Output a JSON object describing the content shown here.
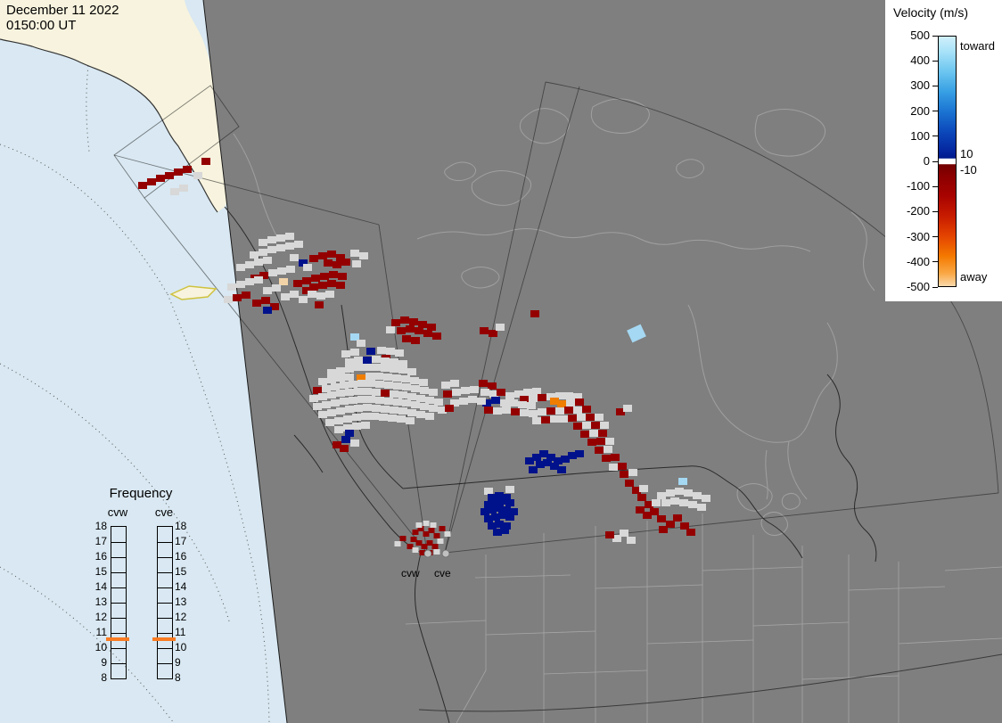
{
  "header": {
    "date": "December 11 2022",
    "time": "0150:00 UT"
  },
  "colorbar": {
    "title": "Velocity (m/s)",
    "toward": "toward",
    "away": "away",
    "ticks": [
      "500",
      "400",
      "300",
      "200",
      "100",
      "0",
      "-100",
      "-200",
      "-300",
      "-400",
      "-500"
    ],
    "inner_ticks": [
      "10",
      "-10"
    ],
    "stops": [
      [
        0,
        "#d0f0fb"
      ],
      [
        0.06,
        "#a8e2f8"
      ],
      [
        0.14,
        "#6cc6f0"
      ],
      [
        0.22,
        "#38a0e4"
      ],
      [
        0.3,
        "#1b74d2"
      ],
      [
        0.38,
        "#0c49bb"
      ],
      [
        0.46,
        "#04259e"
      ],
      [
        0.487,
        "#001a8c"
      ],
      [
        0.49,
        "#ffffff"
      ],
      [
        0.51,
        "#ffffff"
      ],
      [
        0.513,
        "#730000"
      ],
      [
        0.56,
        "#8c0000"
      ],
      [
        0.64,
        "#a80300"
      ],
      [
        0.72,
        "#c81c00"
      ],
      [
        0.8,
        "#e44400"
      ],
      [
        0.88,
        "#f47a00"
      ],
      [
        0.95,
        "#f9a947"
      ],
      [
        1,
        "#fbd9ad"
      ]
    ]
  },
  "frequency": {
    "title": "Frequency",
    "columns": [
      "cvw",
      "cve"
    ],
    "ticks": [
      "18",
      "17",
      "16",
      "15",
      "14",
      "13",
      "12",
      "11",
      "10",
      "9",
      "8"
    ],
    "marker_color": "#f97b22",
    "marker_value": 10.5
  },
  "map": {
    "sites": [
      "cvw",
      "cve"
    ]
  },
  "colors": {
    "ocean": "#d9e8f2",
    "land": "#f7f3de",
    "map_bg": "#7f7f7f",
    "coast": "#a0a0a0",
    "border": "#2b2b2b",
    "G": "#d8d8d8",
    "R": "#940000",
    "N": "#00128b",
    "LB": "#a5d8f3",
    "O": "#ef7d00",
    "C": "#f2d3a8"
  },
  "cells": [
    [
      "R",
      160,
      208
    ],
    [
      "R",
      170,
      204
    ],
    [
      "R",
      180,
      200
    ],
    [
      "R",
      190,
      197
    ],
    [
      "R",
      200,
      193
    ],
    [
      "R",
      210,
      190
    ],
    [
      "R",
      231,
      181
    ],
    [
      "G",
      196,
      215
    ],
    [
      "G",
      206,
      211
    ],
    [
      "G",
      222,
      197
    ],
    [
      "G",
      295,
      272
    ],
    [
      "G",
      305,
      269
    ],
    [
      "G",
      315,
      267
    ],
    [
      "G",
      325,
      265
    ],
    [
      "G",
      285,
      286
    ],
    [
      "G",
      295,
      283
    ],
    [
      "G",
      305,
      280
    ],
    [
      "G",
      315,
      278
    ],
    [
      "G",
      325,
      276
    ],
    [
      "G",
      335,
      274
    ],
    [
      "R",
      352,
      290
    ],
    [
      "R",
      362,
      287
    ],
    [
      "R",
      372,
      285
    ],
    [
      "R",
      382,
      289
    ],
    [
      "R",
      368,
      295
    ],
    [
      "R",
      378,
      297
    ],
    [
      "R",
      388,
      294
    ],
    [
      "N",
      340,
      295
    ],
    [
      "G",
      270,
      300
    ],
    [
      "G",
      280,
      297
    ],
    [
      "G",
      290,
      294
    ],
    [
      "G",
      300,
      292
    ],
    [
      "G",
      330,
      289
    ],
    [
      "G",
      345,
      300
    ],
    [
      "R",
      286,
      312
    ],
    [
      "R",
      296,
      309
    ],
    [
      "G",
      306,
      306
    ],
    [
      "G",
      316,
      304
    ],
    [
      "G",
      326,
      302
    ],
    [
      "C",
      318,
      316
    ],
    [
      "R",
      334,
      318
    ],
    [
      "R",
      344,
      315
    ],
    [
      "R",
      354,
      312
    ],
    [
      "R",
      364,
      310
    ],
    [
      "R",
      374,
      308
    ],
    [
      "R",
      384,
      310
    ],
    [
      "R",
      352,
      322
    ],
    [
      "R",
      362,
      320
    ],
    [
      "R",
      372,
      318
    ],
    [
      "R",
      382,
      320
    ],
    [
      "R",
      344,
      326
    ],
    [
      "G",
      260,
      322
    ],
    [
      "G",
      270,
      319
    ],
    [
      "G",
      280,
      316
    ],
    [
      "G",
      290,
      314
    ],
    [
      "G",
      300,
      326
    ],
    [
      "G",
      310,
      323
    ],
    [
      "R",
      266,
      334
    ],
    [
      "R",
      276,
      331
    ],
    [
      "R",
      288,
      340
    ],
    [
      "R",
      298,
      337
    ],
    [
      "G",
      256,
      336
    ],
    [
      "G",
      320,
      333
    ],
    [
      "G",
      330,
      330
    ],
    [
      "G",
      340,
      336
    ],
    [
      "R",
      308,
      344
    ],
    [
      "N",
      300,
      348
    ],
    [
      "G",
      350,
      330
    ],
    [
      "G",
      360,
      332
    ],
    [
      "G",
      370,
      330
    ],
    [
      "R",
      358,
      342
    ],
    [
      "G",
      398,
      284
    ],
    [
      "G",
      408,
      287
    ],
    [
      "G",
      400,
      296
    ],
    [
      "R",
      444,
      362
    ],
    [
      "R",
      454,
      359
    ],
    [
      "R",
      464,
      361
    ],
    [
      "R",
      474,
      364
    ],
    [
      "R",
      484,
      367
    ],
    [
      "R",
      450,
      371
    ],
    [
      "R",
      460,
      369
    ],
    [
      "R",
      470,
      371
    ],
    [
      "R",
      480,
      374
    ],
    [
      "R",
      490,
      377
    ],
    [
      "R",
      456,
      380
    ],
    [
      "R",
      466,
      382
    ],
    [
      "G",
      438,
      370
    ],
    [
      "R",
      543,
      371
    ],
    [
      "R",
      553,
      374
    ],
    [
      "G",
      561,
      367
    ],
    [
      "R",
      600,
      352
    ],
    [
      "LB",
      398,
      378
    ],
    [
      "G",
      405,
      385
    ],
    [
      "G",
      388,
      397
    ],
    [
      "G",
      398,
      395
    ],
    [
      "N",
      416,
      394
    ],
    [
      "G",
      428,
      393
    ],
    [
      "G",
      438,
      394
    ],
    [
      "G",
      448,
      396
    ],
    [
      "R",
      433,
      402
    ],
    [
      "N",
      412,
      404
    ],
    [
      "G",
      392,
      406
    ],
    [
      "G",
      402,
      404
    ],
    [
      "G",
      422,
      403
    ],
    [
      "G",
      432,
      405
    ],
    [
      "G",
      442,
      406
    ],
    [
      "G",
      452,
      408
    ],
    [
      "G",
      372,
      418
    ],
    [
      "G",
      382,
      416
    ],
    [
      "G",
      392,
      414
    ],
    [
      "G",
      402,
      412
    ],
    [
      "G",
      412,
      412
    ],
    [
      "G",
      422,
      412
    ],
    [
      "G",
      432,
      413
    ],
    [
      "G",
      442,
      414
    ],
    [
      "G",
      452,
      415
    ],
    [
      "G",
      462,
      417
    ],
    [
      "O",
      405,
      424
    ],
    [
      "G",
      362,
      428
    ],
    [
      "G",
      372,
      426
    ],
    [
      "G",
      382,
      424
    ],
    [
      "G",
      392,
      423
    ],
    [
      "G",
      415,
      422
    ],
    [
      "G",
      425,
      422
    ],
    [
      "G",
      435,
      423
    ],
    [
      "G",
      445,
      424
    ],
    [
      "G",
      455,
      425
    ],
    [
      "G",
      465,
      427
    ],
    [
      "G",
      475,
      429
    ],
    [
      "R",
      356,
      438
    ],
    [
      "G",
      366,
      436
    ],
    [
      "G",
      376,
      434
    ],
    [
      "G",
      386,
      432
    ],
    [
      "G",
      396,
      431
    ],
    [
      "G",
      406,
      430
    ],
    [
      "G",
      416,
      430
    ],
    [
      "G",
      426,
      431
    ],
    [
      "G",
      436,
      432
    ],
    [
      "G",
      446,
      433
    ],
    [
      "G",
      456,
      434
    ],
    [
      "G",
      466,
      436
    ],
    [
      "G",
      476,
      438
    ],
    [
      "G",
      486,
      440
    ],
    [
      "G",
      352,
      447
    ],
    [
      "G",
      362,
      445
    ],
    [
      "G",
      372,
      443
    ],
    [
      "G",
      382,
      441
    ],
    [
      "G",
      392,
      440
    ],
    [
      "G",
      402,
      439
    ],
    [
      "G",
      412,
      439
    ],
    [
      "G",
      422,
      440
    ],
    [
      "R",
      432,
      441
    ],
    [
      "G",
      442,
      442
    ],
    [
      "G",
      452,
      443
    ],
    [
      "G",
      462,
      445
    ],
    [
      "G",
      472,
      447
    ],
    [
      "G",
      482,
      449
    ],
    [
      "G",
      492,
      451
    ],
    [
      "G",
      356,
      456
    ],
    [
      "G",
      366,
      454
    ],
    [
      "G",
      376,
      452
    ],
    [
      "G",
      386,
      450
    ],
    [
      "G",
      396,
      449
    ],
    [
      "G",
      406,
      448
    ],
    [
      "G",
      416,
      448
    ],
    [
      "G",
      426,
      449
    ],
    [
      "G",
      436,
      450
    ],
    [
      "G",
      446,
      451
    ],
    [
      "G",
      456,
      452
    ],
    [
      "G",
      466,
      454
    ],
    [
      "G",
      476,
      456
    ],
    [
      "G",
      486,
      458
    ],
    [
      "G",
      496,
      460
    ],
    [
      "G",
      362,
      465
    ],
    [
      "G",
      372,
      463
    ],
    [
      "G",
      382,
      461
    ],
    [
      "G",
      392,
      459
    ],
    [
      "G",
      402,
      458
    ],
    [
      "G",
      412,
      457
    ],
    [
      "G",
      422,
      458
    ],
    [
      "G",
      432,
      459
    ],
    [
      "G",
      442,
      460
    ],
    [
      "G",
      452,
      461
    ],
    [
      "G",
      462,
      463
    ],
    [
      "G",
      472,
      465
    ],
    [
      "G",
      482,
      467
    ],
    [
      "G",
      370,
      474
    ],
    [
      "G",
      380,
      472
    ],
    [
      "G",
      390,
      470
    ],
    [
      "G",
      400,
      468
    ],
    [
      "G",
      410,
      467
    ],
    [
      "G",
      420,
      467
    ],
    [
      "G",
      430,
      468
    ],
    [
      "G",
      440,
      469
    ],
    [
      "G",
      450,
      470
    ],
    [
      "G",
      460,
      472
    ],
    [
      "G",
      380,
      482
    ],
    [
      "G",
      390,
      480
    ],
    [
      "G",
      400,
      478
    ],
    [
      "G",
      410,
      477
    ],
    [
      "N",
      392,
      486
    ],
    [
      "N",
      388,
      493
    ],
    [
      "R",
      378,
      499
    ],
    [
      "R",
      386,
      503
    ],
    [
      "G",
      398,
      497
    ],
    [
      "G",
      500,
      432
    ],
    [
      "G",
      510,
      430
    ],
    [
      "R",
      502,
      442
    ],
    [
      "G",
      512,
      440
    ],
    [
      "G",
      522,
      438
    ],
    [
      "G",
      532,
      437
    ],
    [
      "R",
      542,
      430
    ],
    [
      "R",
      552,
      433
    ],
    [
      "G",
      544,
      440
    ],
    [
      "G",
      554,
      442
    ],
    [
      "R",
      562,
      440
    ],
    [
      "G",
      572,
      444
    ],
    [
      "G",
      582,
      442
    ],
    [
      "G",
      592,
      440
    ],
    [
      "G",
      602,
      439
    ],
    [
      "R",
      588,
      448
    ],
    [
      "G",
      598,
      447
    ],
    [
      "R",
      608,
      446
    ],
    [
      "G",
      618,
      445
    ],
    [
      "G",
      628,
      444
    ],
    [
      "G",
      638,
      444
    ],
    [
      "G",
      648,
      445
    ],
    [
      "N",
      546,
      452
    ],
    [
      "N",
      556,
      449
    ],
    [
      "G",
      566,
      452
    ],
    [
      "G",
      576,
      452
    ],
    [
      "G",
      586,
      454
    ],
    [
      "G",
      596,
      455
    ],
    [
      "O",
      622,
      450
    ],
    [
      "O",
      630,
      453
    ],
    [
      "G",
      640,
      452
    ],
    [
      "R",
      650,
      451
    ],
    [
      "G",
      530,
      448
    ],
    [
      "G",
      520,
      450
    ],
    [
      "G",
      510,
      452
    ],
    [
      "R",
      504,
      458
    ],
    [
      "G",
      540,
      450
    ],
    [
      "R",
      548,
      460
    ],
    [
      "G",
      558,
      461
    ],
    [
      "G",
      568,
      460
    ],
    [
      "R",
      578,
      462
    ],
    [
      "G",
      588,
      463
    ],
    [
      "G",
      598,
      464
    ],
    [
      "G",
      608,
      462
    ],
    [
      "R",
      618,
      461
    ],
    [
      "G",
      628,
      461
    ],
    [
      "R",
      638,
      460
    ],
    [
      "G",
      648,
      460
    ],
    [
      "R",
      658,
      459
    ],
    [
      "G",
      602,
      472
    ],
    [
      "R",
      612,
      471
    ],
    [
      "G",
      622,
      470
    ],
    [
      "G",
      632,
      470
    ],
    [
      "R",
      642,
      469
    ],
    [
      "G",
      652,
      468
    ],
    [
      "R",
      662,
      468
    ],
    [
      "G",
      672,
      468
    ],
    [
      "R",
      648,
      478
    ],
    [
      "G",
      658,
      477
    ],
    [
      "R",
      668,
      477
    ],
    [
      "G",
      678,
      477
    ],
    [
      "R",
      656,
      487
    ],
    [
      "G",
      666,
      486
    ],
    [
      "R",
      676,
      486
    ],
    [
      "R",
      664,
      496
    ],
    [
      "R",
      674,
      495
    ],
    [
      "G",
      684,
      495
    ],
    [
      "R",
      672,
      505
    ],
    [
      "G",
      682,
      504
    ],
    [
      "R",
      680,
      514
    ],
    [
      "R",
      690,
      513
    ],
    [
      "G",
      688,
      524
    ],
    [
      "R",
      698,
      523
    ],
    [
      "R",
      696,
      462
    ],
    [
      "G",
      704,
      458
    ],
    [
      "LB",
      714,
      374,
      17,
      15,
      -25
    ],
    [
      "N",
      594,
      517
    ],
    [
      "N",
      602,
      513
    ],
    [
      "N",
      610,
      509
    ],
    [
      "N",
      618,
      513
    ],
    [
      "N",
      626,
      517
    ],
    [
      "N",
      606,
      521
    ],
    [
      "N",
      614,
      519
    ],
    [
      "N",
      622,
      523
    ],
    [
      "N",
      634,
      515
    ],
    [
      "N",
      642,
      511
    ],
    [
      "N",
      598,
      527
    ],
    [
      "N",
      630,
      527
    ],
    [
      "N",
      650,
      509
    ],
    [
      "R",
      700,
      532
    ],
    [
      "G",
      710,
      530
    ],
    [
      "R",
      706,
      542
    ],
    [
      "R",
      714,
      550
    ],
    [
      "G",
      722,
      548
    ],
    [
      "R",
      720,
      558
    ],
    [
      "R",
      728,
      566
    ],
    [
      "G",
      736,
      564
    ],
    [
      "R",
      734,
      574
    ],
    [
      "R",
      742,
      582
    ],
    [
      "R",
      726,
      578
    ],
    [
      "R",
      718,
      572
    ],
    [
      "G",
      742,
      556
    ],
    [
      "G",
      752,
      553
    ],
    [
      "G",
      762,
      551
    ],
    [
      "G",
      772,
      553
    ],
    [
      "G",
      782,
      556
    ],
    [
      "G",
      792,
      559
    ],
    [
      "G",
      747,
      564
    ],
    [
      "G",
      757,
      562
    ],
    [
      "G",
      767,
      564
    ],
    [
      "G",
      777,
      566
    ],
    [
      "G",
      787,
      569
    ],
    [
      "LB",
      766,
      540
    ],
    [
      "R",
      752,
      588
    ],
    [
      "R",
      744,
      594
    ],
    [
      "R",
      760,
      581
    ],
    [
      "R",
      768,
      590
    ],
    [
      "G",
      700,
      598
    ],
    [
      "G",
      692,
      604
    ],
    [
      "R",
      684,
      600
    ],
    [
      "G",
      708,
      606
    ],
    [
      "R",
      775,
      597
    ],
    [
      "G",
      548,
      551
    ],
    [
      "G",
      572,
      549
    ],
    [
      "N",
      552,
      558
    ],
    [
      "N",
      560,
      556
    ],
    [
      "N",
      568,
      558
    ],
    [
      "N",
      548,
      566
    ],
    [
      "N",
      556,
      564
    ],
    [
      "N",
      564,
      562
    ],
    [
      "N",
      572,
      564
    ],
    [
      "N",
      544,
      574
    ],
    [
      "N",
      552,
      572
    ],
    [
      "N",
      560,
      570
    ],
    [
      "N",
      568,
      572
    ],
    [
      "N",
      576,
      574
    ],
    [
      "N",
      548,
      582
    ],
    [
      "N",
      556,
      580
    ],
    [
      "N",
      564,
      578
    ],
    [
      "N",
      572,
      580
    ],
    [
      "N",
      552,
      590
    ],
    [
      "N",
      560,
      588
    ],
    [
      "N",
      568,
      590
    ],
    [
      "N",
      558,
      597
    ],
    [
      "N",
      566,
      595
    ],
    [
      "R",
      466,
      597,
      7,
      6
    ],
    [
      "R",
      472,
      593,
      7,
      6
    ],
    [
      "R",
      478,
      599,
      7,
      6
    ],
    [
      "R",
      484,
      595,
      7,
      6
    ],
    [
      "R",
      490,
      601,
      7,
      6
    ],
    [
      "G",
      470,
      589,
      7,
      6
    ],
    [
      "G",
      478,
      587,
      7,
      6
    ],
    [
      "G",
      486,
      589,
      7,
      6
    ],
    [
      "R",
      464,
      605,
      7,
      6
    ],
    [
      "R",
      470,
      609,
      7,
      6
    ],
    [
      "R",
      476,
      613,
      7,
      6
    ],
    [
      "R",
      482,
      609,
      7,
      6
    ],
    [
      "R",
      488,
      613,
      7,
      6
    ],
    [
      "G",
      494,
      607,
      7,
      6
    ],
    [
      "R",
      460,
      613,
      7,
      6
    ],
    [
      "G",
      466,
      617,
      7,
      6
    ],
    [
      "R",
      474,
      620,
      7,
      6
    ],
    [
      "R",
      482,
      620,
      7,
      6
    ],
    [
      "G",
      490,
      619,
      7,
      6
    ],
    [
      "R",
      452,
      604,
      7,
      6
    ],
    [
      "G",
      446,
      610,
      7,
      6
    ],
    [
      "R",
      496,
      593,
      7,
      6
    ],
    [
      "G",
      502,
      599,
      7,
      6
    ]
  ]
}
